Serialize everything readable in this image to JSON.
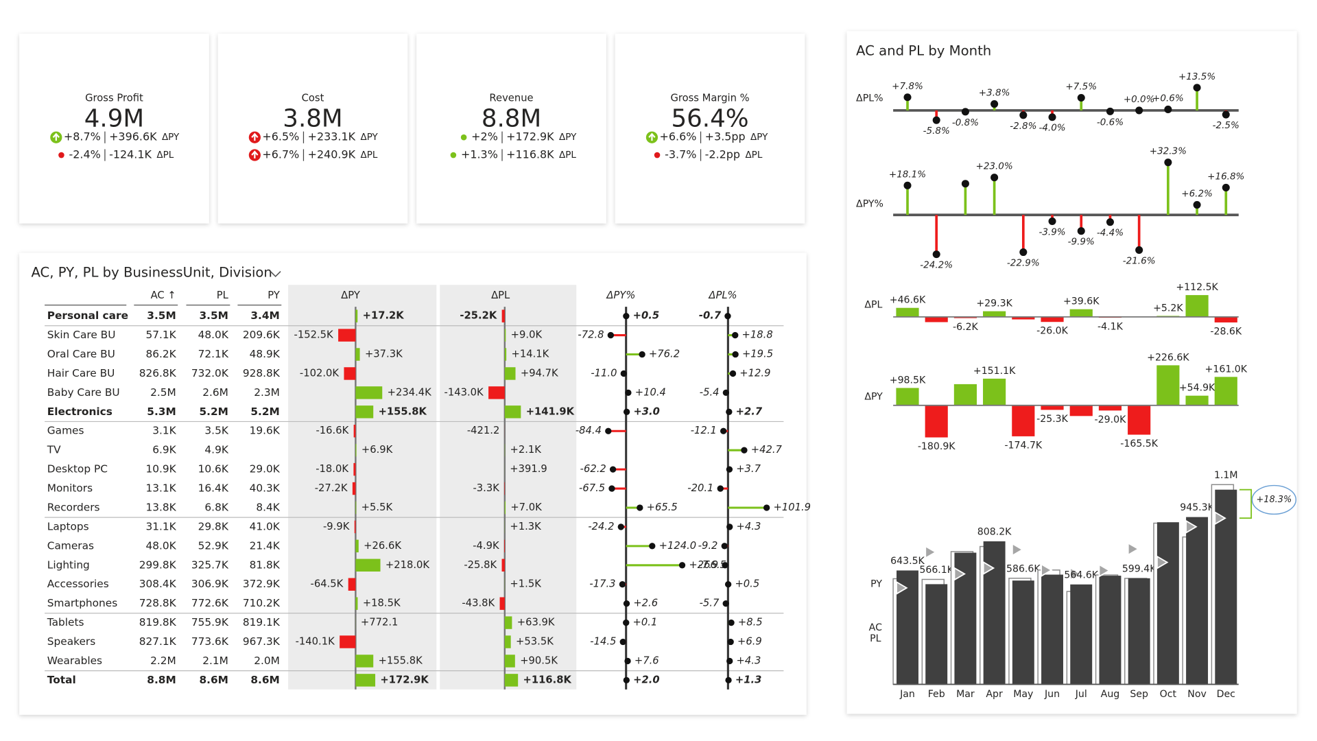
{
  "kpi_cards": [
    {
      "title": "Gross Profit",
      "value": "4.9M",
      "rows": [
        {
          "pct": "+8.7%",
          "abs": "+396.6K",
          "label": "ΔPY",
          "color": "#7cc11b",
          "icon": "arrow"
        },
        {
          "pct": "-2.4%",
          "abs": "-124.1K",
          "label": "ΔPL",
          "color": "#e0191b",
          "icon": "dot"
        }
      ]
    },
    {
      "title": "Cost",
      "value": "3.8M",
      "rows": [
        {
          "pct": "+6.5%",
          "abs": "+233.1K",
          "label": "ΔPY",
          "color": "#e0191b",
          "icon": "arrow"
        },
        {
          "pct": "+6.7%",
          "abs": "+240.9K",
          "label": "ΔPL",
          "color": "#e0191b",
          "icon": "arrow"
        }
      ]
    },
    {
      "title": "Revenue",
      "value": "8.8M",
      "rows": [
        {
          "pct": "+2%",
          "abs": "+172.9K",
          "label": "ΔPY",
          "color": "#7cc11b",
          "icon": "dot"
        },
        {
          "pct": "+1.3%",
          "abs": "+116.8K",
          "label": "ΔPL",
          "color": "#7cc11b",
          "icon": "dot"
        }
      ]
    },
    {
      "title": "Gross Margin %",
      "value": "56.4%",
      "rows": [
        {
          "pct": "+6.6%",
          "abs": "+3.5pp",
          "label": "ΔPY",
          "color": "#7cc11b",
          "icon": "arrow"
        },
        {
          "pct": "-3.7%",
          "abs": "-2.2pp",
          "label": "ΔPL",
          "color": "#e0191b",
          "icon": "dot"
        }
      ]
    }
  ],
  "table": {
    "title": "AC, PY, PL by BusinessUnit, Division",
    "columns": [
      "AC ↑",
      "PL",
      "PY"
    ],
    "rows": [
      {
        "name": "Personal care",
        "bold": true,
        "ac": "3.5M",
        "pl": "3.5M",
        "py": "3.4M"
      },
      {
        "name": "Skin Care BU",
        "bold": false,
        "ac": "57.1K",
        "pl": "48.0K",
        "py": "209.6K"
      },
      {
        "name": "Oral Care BU",
        "bold": false,
        "ac": "86.2K",
        "pl": "72.1K",
        "py": "48.9K"
      },
      {
        "name": "Hair Care BU",
        "bold": false,
        "ac": "826.8K",
        "pl": "732.0K",
        "py": "928.8K"
      },
      {
        "name": "Baby Care BU",
        "bold": false,
        "ac": "2.5M",
        "pl": "2.6M",
        "py": "2.3M"
      },
      {
        "name": "Electronics",
        "bold": true,
        "ac": "5.3M",
        "pl": "5.2M",
        "py": "5.2M"
      },
      {
        "name": "Games",
        "bold": false,
        "ac": "3.1K",
        "pl": "3.5K",
        "py": "19.6K"
      },
      {
        "name": "TV",
        "bold": false,
        "ac": "6.9K",
        "pl": "4.9K",
        "py": null
      },
      {
        "name": "Desktop PC",
        "bold": false,
        "ac": "10.9K",
        "pl": "10.6K",
        "py": "29.0K"
      },
      {
        "name": "Monitors",
        "bold": false,
        "ac": "13.1K",
        "pl": "16.4K",
        "py": "40.3K"
      },
      {
        "name": "Recorders",
        "bold": false,
        "ac": "13.8K",
        "pl": "6.8K",
        "py": "8.4K"
      },
      {
        "name": "Laptops",
        "bold": false,
        "ac": "31.1K",
        "pl": "29.8K",
        "py": "41.0K"
      },
      {
        "name": "Cameras",
        "bold": false,
        "ac": "48.0K",
        "pl": "52.9K",
        "py": "21.4K"
      },
      {
        "name": "Lighting",
        "bold": false,
        "ac": "299.8K",
        "pl": "325.7K",
        "py": "81.8K"
      },
      {
        "name": "Accessories",
        "bold": false,
        "ac": "308.4K",
        "pl": "306.9K",
        "py": "372.9K"
      },
      {
        "name": "Smartphones",
        "bold": false,
        "ac": "728.8K",
        "pl": "772.6K",
        "py": "710.2K"
      },
      {
        "name": "Tablets",
        "bold": false,
        "ac": "819.8K",
        "pl": "755.9K",
        "py": "819.1K"
      },
      {
        "name": "Speakers",
        "bold": false,
        "ac": "827.1K",
        "pl": "773.6K",
        "py": "967.3K"
      },
      {
        "name": "Wearables",
        "bold": false,
        "ac": "2.2M",
        "pl": "2.1M",
        "py": "2.0M"
      },
      {
        "name": "Total",
        "bold": true,
        "ac": "8.8M",
        "pl": "8.6M",
        "py": "8.6M"
      }
    ],
    "variance_columns": [
      {
        "name": "ΔPY",
        "type": "bar",
        "values": [
          17200,
          -152500,
          37300,
          -102000,
          234400,
          155800,
          -16600,
          6900,
          -18000,
          -27200,
          5500,
          -9900,
          26600,
          218000,
          -64500,
          18500,
          772.1,
          -140100,
          155800,
          172900
        ],
        "value_labels": [
          "+17.2K",
          "-152.5K",
          "+37.3K",
          "-102.0K",
          "+234.4K",
          "+155.8K",
          "-16.6K",
          "+6.9K",
          "-18.0K",
          "-27.2K",
          "+5.5K",
          "-9.9K",
          "+26.6K",
          "+218.0K",
          "-64.5K",
          "+18.5K",
          "+772.1",
          "-140.1K",
          "+155.8K",
          "+172.9K"
        ]
      },
      {
        "name": "ΔPL",
        "type": "bar",
        "values": [
          -25200,
          9000,
          14100,
          94700,
          -143000,
          141900,
          -421.2,
          2100,
          391.9,
          -3300,
          7000,
          1300,
          -4900,
          -25800,
          1500,
          -43800,
          63900,
          53500,
          90500,
          116800
        ],
        "value_labels": [
          "-25.2K",
          "+9.0K",
          "+14.1K",
          "+94.7K",
          "-143.0K",
          "+141.9K",
          "-421.2",
          "+2.1K",
          "+391.9",
          "-3.3K",
          "+7.0K",
          "+1.3K",
          "-4.9K",
          "-25.8K",
          "+1.5K",
          "-43.8K",
          "+63.9K",
          "+53.5K",
          "+90.5K",
          "+116.8K"
        ]
      },
      {
        "name": "ΔPY%",
        "type": "lollipop",
        "values": [
          0.5,
          -72.8,
          76.2,
          -11.0,
          10.4,
          3.0,
          -84.4,
          null,
          -62.2,
          -67.5,
          65.5,
          -24.2,
          124.0,
          266.5,
          -17.3,
          2.6,
          0.1,
          -14.5,
          7.6,
          2.0
        ],
        "value_labels": [
          "+0.5",
          "-72.8",
          "+76.2",
          "-11.0",
          "+10.4",
          "+3.0",
          "-84.4",
          null,
          "-62.2",
          "-67.5",
          "+65.5",
          "-24.2",
          "+124.0",
          "+266.5",
          "-17.3",
          "+2.6",
          "+0.1",
          "-14.5",
          "+7.6",
          "+2.0"
        ]
      },
      {
        "name": "ΔPL%",
        "type": "lollipop",
        "values": [
          -0.7,
          18.8,
          19.5,
          12.9,
          -5.4,
          2.7,
          -12.1,
          42.7,
          3.7,
          -20.1,
          101.9,
          4.3,
          -9.2,
          -7.9,
          0.5,
          -5.7,
          8.5,
          6.9,
          4.3,
          1.3
        ],
        "value_labels": [
          "-0.7",
          "+18.8",
          "+19.5",
          "+12.9",
          "-5.4",
          "+2.7",
          "-12.1",
          "+42.7",
          "+3.7",
          "-20.1",
          "+101.9",
          "+4.3",
          "-9.2",
          "-7.9",
          "+0.5",
          "-5.7",
          "+8.5",
          "+6.9",
          "+4.3",
          "+1.3"
        ]
      }
    ],
    "positive_color": "#7cc11b",
    "negative_color": "#ee1c1c"
  },
  "panel_title": "AC and PL by Month",
  "chart_data": [
    {
      "type": "lollipop",
      "title": "ΔPL%",
      "values": [
        7.8,
        -5.8,
        -0.8,
        3.8,
        -2.8,
        -4.0,
        7.5,
        -0.6,
        0.0,
        0.6,
        13.5,
        -2.5
      ],
      "value_labels": [
        "+7.8%",
        "-5.8%",
        "-0.8%",
        "+3.8%",
        "-2.8%",
        "-4.0%",
        "+7.5%",
        "-0.6%",
        "+0.0%",
        "+0.6%",
        "+13.5%",
        "-2.5%"
      ],
      "positive_color": "#7cc11b",
      "negative_color": "#ee1c1c"
    },
    {
      "type": "lollipop",
      "title": "ΔPY%",
      "values": [
        18.1,
        -24.2,
        19.2,
        23.0,
        -22.9,
        -3.9,
        -9.9,
        -4.4,
        -21.6,
        32.3,
        6.2,
        16.8
      ],
      "value_labels": [
        "+18.1%",
        "-24.2%",
        null,
        "+23.0%",
        "-22.9%",
        "-3.9%",
        "-9.9%",
        "-4.4%",
        "-21.6%",
        "+32.3%",
        "+6.2%",
        "+16.8%"
      ],
      "positive_color": "#7cc11b",
      "negative_color": "#ee1c1c"
    },
    {
      "type": "bar",
      "title": "ΔPL",
      "values": [
        46.6,
        -27,
        -6.2,
        29.3,
        -13,
        -26.0,
        39.6,
        -4.1,
        0.5,
        5.2,
        112.5,
        -28.6
      ],
      "value_labels": [
        "+46.6K",
        null,
        "-6.2K",
        "+29.3K",
        null,
        "-26.0K",
        "+39.6K",
        "-4.1K",
        null,
        "+5.2K",
        "+112.5K",
        "-28.6K"
      ],
      "positive_color": "#7cc11b",
      "negative_color": "#ee1c1c"
    },
    {
      "type": "bar",
      "title": "ΔPY",
      "values": [
        98.5,
        -180.9,
        120,
        151.1,
        -174.7,
        -25.3,
        -60,
        -29.0,
        -165.5,
        226.6,
        54.9,
        161.0
      ],
      "value_labels": [
        "+98.5K",
        "-180.9K",
        null,
        "+151.1K",
        "-174.7K",
        "-25.3K",
        null,
        "-29.0K",
        "-165.5K",
        "+226.6K",
        "+54.9K",
        "+161.0K"
      ],
      "positive_color": "#7cc11b",
      "negative_color": "#ee1c1c"
    },
    {
      "type": "column",
      "categories": [
        "Jan",
        "Feb",
        "Mar",
        "Apr",
        "May",
        "Jun",
        "Jul",
        "Aug",
        "Sep",
        "Oct",
        "Nov",
        "Dec"
      ],
      "ylim": [
        0,
        1200
      ],
      "series": [
        {
          "name": "AC",
          "color": "#404040",
          "values": [
            643.5,
            566.1,
            744,
            808.2,
            586.6,
            620,
            564.6,
            614,
            599.4,
            916,
            945.3,
            1100
          ],
          "value_labels": [
            "643.5K",
            "566.1K",
            null,
            "808.2K",
            "586.6K",
            null,
            "564.6K",
            null,
            "599.4K",
            null,
            "945.3K",
            "1.1M"
          ]
        },
        {
          "name": "PL",
          "color": "#ffffff",
          "values": [
            596.9,
            593.1,
            750.2,
            778.9,
            599.6,
            646,
            525,
            618.1,
            598.9,
            910.8,
            832.8,
            1128.6
          ]
        },
        {
          "name": "PY",
          "color": "#a6a6a6",
          "values": [
            545,
            747,
            624,
            657.1,
            761.3,
            645.3,
            624.6,
            643,
            764.9,
            689.4,
            890.4,
            939
          ]
        }
      ],
      "annotations": [
        {
          "text": "+18.3%"
        }
      ]
    }
  ]
}
